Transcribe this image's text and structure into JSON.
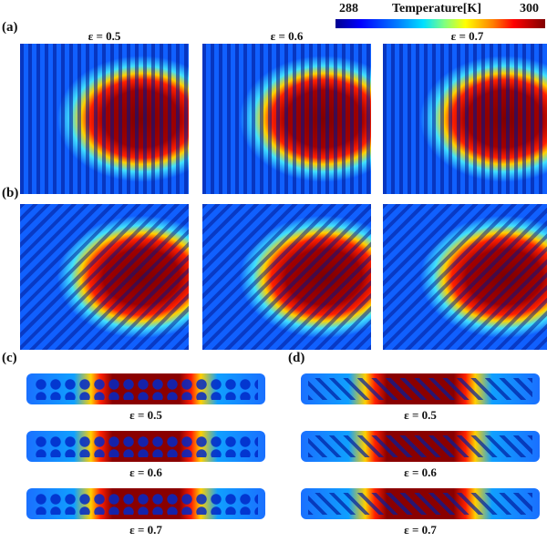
{
  "colorbar": {
    "min": "288",
    "max": "300",
    "label": "Temperature[K]",
    "unit": "K",
    "colormap": "jet"
  },
  "panels": {
    "a": "(a)",
    "b": "(b)",
    "c": "(c)",
    "d": "(d)"
  },
  "titles": [
    "ε = 0.5",
    "ε = 0.6",
    "ε = 0.7"
  ]
}
